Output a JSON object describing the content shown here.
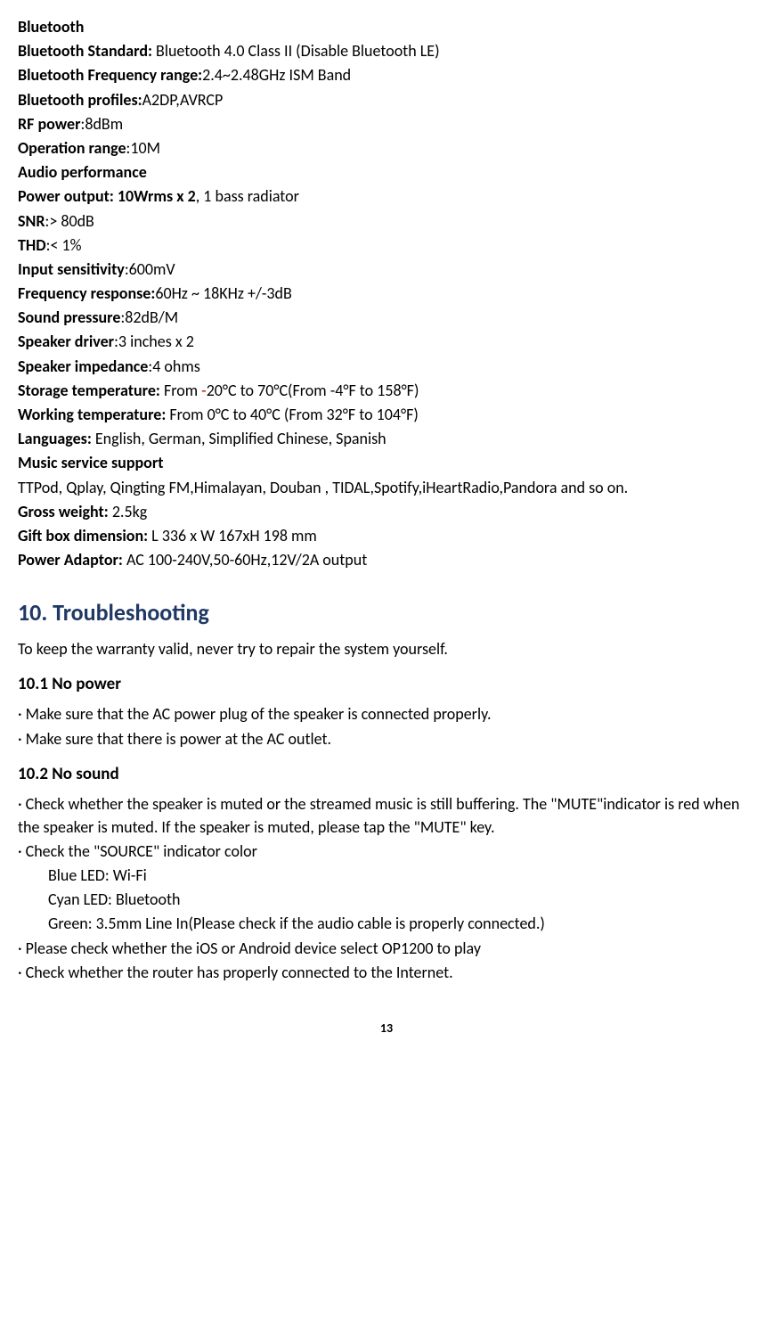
{
  "specs": {
    "bluetooth_heading": "Bluetooth",
    "bt_standard_label": "Bluetooth Standard:",
    "bt_standard_value": "  Bluetooth 4.0 Class II (Disable Bluetooth LE)",
    "bt_freq_label": "Bluetooth Frequency range:",
    "bt_freq_value": "2.4~2.48GHz ISM Band",
    "bt_profiles_label": "Bluetooth profiles:",
    "bt_profiles_value": "A2DP,AVRCP",
    "rf_power_label": "RF power",
    "rf_power_value": ":8dBm",
    "op_range_label": "Operation range",
    "op_range_value": ":10M",
    "audio_perf_heading": "Audio performance",
    "power_output_label": "Power output: 10Wrms x 2",
    "power_output_value": ", 1 bass radiator",
    "snr_label": "SNR",
    "snr_value": ":> 80dB",
    "thd_label": "THD",
    "thd_value": ":< 1%",
    "input_sens_label": "Input sensitivity",
    "input_sens_value": ":600mV",
    "freq_resp_label": "Frequency response:",
    "freq_resp_value": "60Hz ~ 18KHz +/-3dB",
    "sound_press_label": "Sound pressure",
    "sound_press_value": ":82dB/M",
    "speaker_driver_label": "Speaker driver",
    "speaker_driver_value": ":3 inches x 2",
    "speaker_imp_label": "Speaker impedance",
    "speaker_imp_value": ":4 ohms",
    "storage_temp_label": "Storage temperature: ",
    "storage_temp_pre": "From    ",
    "storage_temp_red": "-",
    "storage_temp_rest": "20°C to 70°C(From -4°F to 158°F)",
    "working_temp_label": "Working temperature: ",
    "working_temp_value": "From    0°C to 40°C (From 32°F to 104°F)",
    "languages_label": "Languages: ",
    "languages_value": "English, German, Simplified Chinese, Spanish",
    "music_service_heading": "Music service support",
    "music_service_value": "TTPod, Qplay, Qingting FM,Himalayan, Douban , TIDAL,Spotify,iHeartRadio,Pandora and so on.",
    "gross_weight_label": "Gross weight: ",
    "gross_weight_value": "2.5kg",
    "gift_box_label": "Gift box dimension: ",
    "gift_box_value": "L 336 x W 167xH 198 mm",
    "power_adaptor_label": "Power Adaptor: ",
    "power_adaptor_value": "AC 100-240V,50-60Hz,12V/2A output"
  },
  "troubleshooting": {
    "title": "10. Troubleshooting",
    "intro": "To keep the warranty valid, never try to repair the system yourself.",
    "s1_title": "10.1 No power",
    "s1_b1": "·  Make sure that the AC power plug of the speaker is connected properly.",
    "s1_b2": "·  Make sure that there is power at the AC outlet.",
    "s2_title": "10.2 No sound",
    "s2_b1": "·  Check whether the speaker is muted or the streamed music is still buffering. The \"MUTE\"indicator is red when the speaker is muted. If the speaker is muted, please tap the \"MUTE\" key.",
    "s2_b2": "·  Check the \"SOURCE\" indicator color",
    "s2_b2_sub1": "Blue LED: Wi-Fi",
    "s2_b2_sub2": "Cyan LED: Bluetooth",
    "s2_b2_sub3": "Green: 3.5mm Line In(Please check if the audio cable is properly connected.)",
    "s2_b3": "·  Please check whether the iOS or Android device select OP1200 to play",
    "s2_b4": "·  Check whether the router has properly connected to the Internet."
  },
  "page_number": "13"
}
